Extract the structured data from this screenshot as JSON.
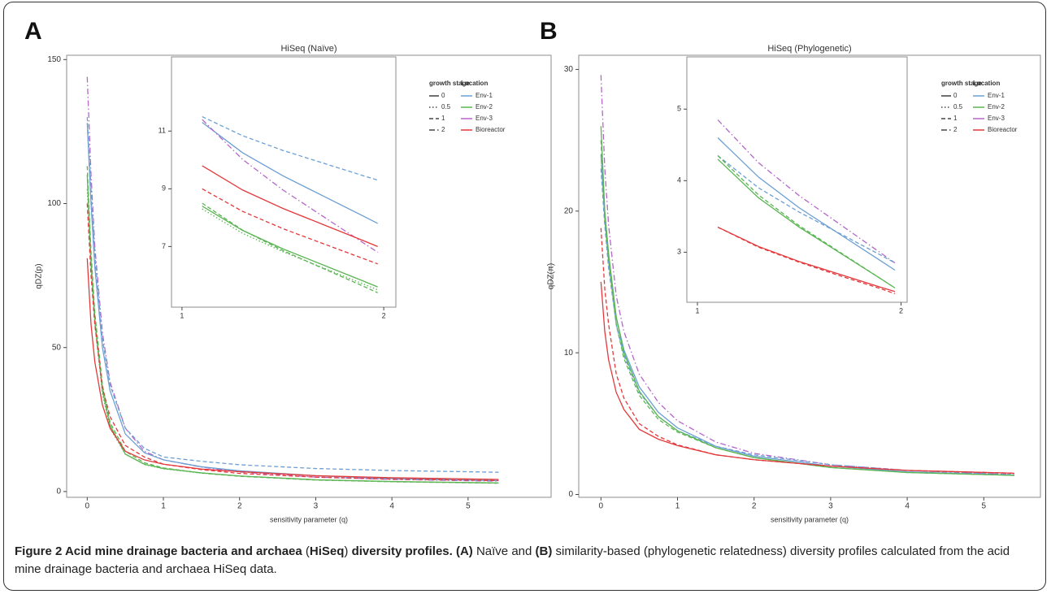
{
  "panel_labels": [
    "A",
    "B"
  ],
  "chart_data": [
    {
      "type": "line",
      "title": "HiSeq (Naïve)",
      "x_label": "sensitivity parameter (q)",
      "y_label": "qDZ(p)",
      "x": [
        0,
        0.05,
        0.1,
        0.2,
        0.3,
        0.5,
        0.75,
        1,
        1.5,
        2,
        3,
        4,
        5.4
      ],
      "xlim": [
        -0.27,
        6.09
      ],
      "ylim": [
        -2,
        151.5
      ],
      "xticks": [
        0,
        1,
        2,
        3,
        4,
        5
      ],
      "yticks": [
        0,
        50,
        100,
        150
      ],
      "linetype_legend": {
        "title": "growth stage",
        "labels": [
          "0",
          "0.5",
          "1",
          "2"
        ],
        "styles": [
          "solid",
          "dotted",
          "dashed",
          "dashdot"
        ]
      },
      "color_legend": {
        "title": "Location",
        "labels": [
          "Env-1",
          "Env-2",
          "Env-3",
          "Bioreactor"
        ],
        "colors": [
          "#6b9fd3",
          "#5bb553",
          "#b566c9",
          "#e3393b"
        ]
      },
      "series": [
        {
          "color": "#b566c9",
          "linestyle": "dashdot",
          "values": [
            144,
            110,
            85,
            55,
            38,
            22,
            14,
            11,
            8.5,
            6.8,
            5,
            4.2,
            3.6
          ]
        },
        {
          "color": "#6b9fd3",
          "linestyle": "solid",
          "values": [
            128,
            100,
            78,
            50,
            35,
            20,
            13.5,
            11,
            8.6,
            7.2,
            5.5,
            4.5,
            3.8
          ]
        },
        {
          "color": "#6b9fd3",
          "linestyle": "dashed",
          "values": [
            130,
            105,
            82,
            53,
            37,
            22,
            15,
            12,
            10.5,
            9.3,
            8,
            7.3,
            6.7
          ]
        },
        {
          "color": "#5bb553",
          "linestyle": "solid",
          "values": [
            110,
            80,
            60,
            35,
            23,
            13,
            9.5,
            8,
            6.5,
            5.4,
            4.1,
            3.5,
            3
          ]
        },
        {
          "color": "#5bb553",
          "linestyle": "dashed",
          "values": [
            113,
            83,
            62,
            37,
            24,
            14,
            10,
            8.2,
            6.4,
            5.3,
            4,
            3.4,
            2.9
          ]
        },
        {
          "color": "#5bb553",
          "linestyle": "dotted",
          "values": [
            105,
            78,
            58,
            34,
            22,
            13,
            9.4,
            7.9,
            6.4,
            5.4,
            4,
            3.4,
            2.9
          ]
        },
        {
          "color": "#e3393b",
          "linestyle": "solid",
          "values": [
            81,
            58,
            45,
            30,
            22,
            14,
            11,
            9.5,
            7.8,
            6.9,
            5.5,
            4.8,
            4.2
          ]
        },
        {
          "color": "#e3393b",
          "linestyle": "dashed",
          "values": [
            100,
            75,
            58,
            36,
            26,
            16,
            12,
            9.5,
            7.6,
            6.3,
            5,
            4.3,
            3.8
          ]
        }
      ]
    },
    {
      "type": "line",
      "x": [
        1.1,
        1.3,
        1.5,
        1.7,
        1.9,
        1.97
      ],
      "xlim": [
        0.948,
        2.06
      ],
      "ylim": [
        4.9,
        13.57
      ],
      "xticks": [
        1,
        2
      ],
      "yticks": [
        7,
        9,
        11
      ],
      "series": [
        {
          "color": "#6b9fd3",
          "linestyle": "solid",
          "values": [
            11.3,
            10.25,
            9.45,
            8.75,
            8.05,
            7.8
          ]
        },
        {
          "color": "#6b9fd3",
          "linestyle": "dashed",
          "values": [
            11.5,
            10.84,
            10.33,
            9.89,
            9.45,
            9.3
          ]
        },
        {
          "color": "#b566c9",
          "linestyle": "dashdot",
          "values": [
            11.4,
            10.02,
            8.96,
            8.04,
            7.12,
            6.8
          ]
        },
        {
          "color": "#e3393b",
          "linestyle": "solid",
          "values": [
            9.8,
            8.96,
            8.32,
            7.76,
            7.2,
            7.0
          ]
        },
        {
          "color": "#e3393b",
          "linestyle": "dashed",
          "values": [
            9.0,
            8.22,
            7.62,
            7.1,
            6.58,
            6.4
          ]
        },
        {
          "color": "#5bb553",
          "linestyle": "solid",
          "values": [
            8.4,
            7.56,
            6.92,
            6.36,
            5.8,
            5.6
          ]
        },
        {
          "color": "#5bb553",
          "linestyle": "dashed",
          "values": [
            8.5,
            7.57,
            6.86,
            6.24,
            5.62,
            5.4
          ]
        },
        {
          "color": "#5bb553",
          "linestyle": "dotted",
          "values": [
            8.3,
            7.46,
            6.82,
            6.26,
            5.7,
            5.5
          ]
        }
      ]
    },
    {
      "type": "line",
      "title": "HiSeq (Phylogenetic)",
      "x_label": "sensitivity parameter (q)",
      "y_label": "qDZ(π)",
      "x": [
        0,
        0.05,
        0.1,
        0.2,
        0.3,
        0.5,
        0.75,
        1,
        1.5,
        2,
        3,
        4,
        5.4
      ],
      "xlim": [
        -0.29,
        5.74
      ],
      "ylim": [
        -0.2,
        31
      ],
      "xticks": [
        0,
        1,
        2,
        3,
        4,
        5
      ],
      "yticks": [
        0,
        10,
        20,
        30
      ],
      "linetype_legend": {
        "title": "growth stage",
        "labels": [
          "0",
          "0.5",
          "1",
          "2"
        ],
        "styles": [
          "solid",
          "dotted",
          "dashed",
          "dashdot"
        ]
      },
      "color_legend": {
        "title": "Location",
        "labels": [
          "Env-1",
          "Env-2",
          "Env-3",
          "Bioreactor"
        ],
        "colors": [
          "#6b9fd3",
          "#5bb553",
          "#b566c9",
          "#e3393b"
        ]
      },
      "series": [
        {
          "color": "#b566c9",
          "linestyle": "dashdot",
          "values": [
            29.6,
            23,
            19,
            14,
            11.5,
            8.5,
            6.5,
            5.2,
            3.7,
            2.9,
            2.1,
            1.7,
            1.4
          ]
        },
        {
          "color": "#6b9fd3",
          "linestyle": "solid",
          "values": [
            24,
            19.5,
            16.5,
            12.5,
            10.2,
            7.6,
            5.8,
            4.7,
            3.4,
            2.7,
            2,
            1.6,
            1.35
          ]
        },
        {
          "color": "#6b9fd3",
          "linestyle": "dashed",
          "values": [
            23,
            19,
            16,
            12,
            9.8,
            7.2,
            5.5,
            4.5,
            3.4,
            2.8,
            2.1,
            1.7,
            1.4
          ]
        },
        {
          "color": "#5bb553",
          "linestyle": "solid",
          "values": [
            26,
            20,
            17,
            12.5,
            10,
            7.3,
            5.5,
            4.5,
            3.3,
            2.6,
            1.9,
            1.55,
            1.35
          ]
        },
        {
          "color": "#5bb553",
          "linestyle": "dashed",
          "values": [
            25,
            19.5,
            16.5,
            12,
            9.6,
            7,
            5.3,
            4.4,
            3.3,
            2.6,
            1.9,
            1.55,
            1.35
          ]
        },
        {
          "color": "#e3393b",
          "linestyle": "solid",
          "values": [
            15,
            11.5,
            9.5,
            7.2,
            6,
            4.6,
            3.9,
            3.45,
            2.8,
            2.45,
            2,
            1.7,
            1.5
          ]
        },
        {
          "color": "#e3393b",
          "linestyle": "dashed",
          "values": [
            18.8,
            14.5,
            12,
            8.5,
            6.8,
            5,
            4.1,
            3.5,
            2.8,
            2.45,
            2,
            1.7,
            1.5
          ]
        }
      ]
    },
    {
      "type": "line",
      "x": [
        1.1,
        1.3,
        1.5,
        1.7,
        1.9,
        1.97
      ],
      "xlim": [
        0.948,
        2.03
      ],
      "ylim": [
        2.3,
        5.73
      ],
      "xticks": [
        1,
        2
      ],
      "yticks": [
        3,
        4,
        5
      ],
      "series": [
        {
          "color": "#b566c9",
          "linestyle": "dashdot",
          "values": [
            4.85,
            4.25,
            3.79,
            3.39,
            2.99,
            2.85
          ]
        },
        {
          "color": "#6b9fd3",
          "linestyle": "solid",
          "values": [
            4.6,
            4.05,
            3.62,
            3.25,
            2.88,
            2.75
          ]
        },
        {
          "color": "#6b9fd3",
          "linestyle": "dashed",
          "values": [
            4.35,
            3.9,
            3.56,
            3.26,
            2.96,
            2.85
          ]
        },
        {
          "color": "#5bb553",
          "linestyle": "solid",
          "values": [
            4.3,
            3.76,
            3.35,
            2.99,
            2.63,
            2.5
          ]
        },
        {
          "color": "#5bb553",
          "linestyle": "dashed",
          "values": [
            4.35,
            3.8,
            3.37,
            3.0,
            2.63,
            2.5
          ]
        },
        {
          "color": "#e3393b",
          "linestyle": "solid",
          "values": [
            3.35,
            3.08,
            2.87,
            2.69,
            2.51,
            2.45
          ]
        },
        {
          "color": "#e3393b",
          "linestyle": "dashed",
          "values": [
            3.35,
            3.07,
            2.86,
            2.67,
            2.49,
            2.42
          ]
        }
      ]
    }
  ],
  "caption": [
    {
      "text": "Figure 2 Acid mine drainage bacteria and archaea ",
      "bold": true
    },
    {
      "text": "(",
      "bold": false
    },
    {
      "text": "HiSeq",
      "bold": true
    },
    {
      "text": ")",
      "bold": false
    },
    {
      "text": " diversity profiles. ",
      "bold": true
    },
    {
      "text": "(A)",
      "bold": true
    },
    {
      "text": " Naïve and ",
      "bold": false
    },
    {
      "text": "(B)",
      "bold": true
    },
    {
      "text": " similarity-based (phylogenetic relatedness) diversity profiles calculated from the acid mine drainage bacteria and archaea HiSeq data.",
      "bold": false
    }
  ]
}
